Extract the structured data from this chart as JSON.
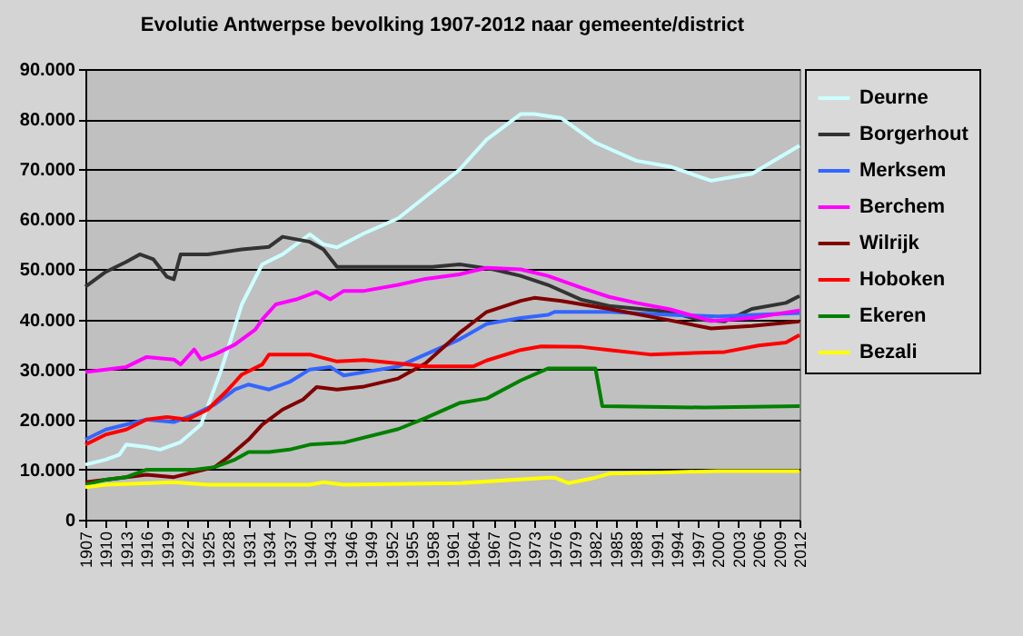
{
  "chart_data": {
    "type": "line",
    "title": "Evolutie Antwerpse bevolking 1907-2012 naar gemeente/district",
    "xlim": [
      1907,
      2012
    ],
    "xticks": [
      1907,
      1910,
      1913,
      1916,
      1919,
      1922,
      1925,
      1928,
      1931,
      1934,
      1937,
      1940,
      1943,
      1946,
      1949,
      1952,
      1955,
      1958,
      1961,
      1964,
      1967,
      1970,
      1973,
      1976,
      1979,
      1982,
      1985,
      1988,
      1991,
      1994,
      1997,
      2000,
      2003,
      2006,
      2009,
      2012
    ],
    "ylim": [
      0,
      90000
    ],
    "yticks": [
      0,
      {
        "value": 10000,
        "label": "10.000"
      },
      {
        "value": 20000,
        "label": "20.000"
      },
      {
        "value": 30000,
        "label": "30.000"
      },
      {
        "value": 40000,
        "label": "40.000"
      },
      {
        "value": 50000,
        "label": "50.000"
      },
      {
        "value": 60000,
        "label": "60.000"
      },
      {
        "value": 70000,
        "label": "70.000"
      },
      {
        "value": 80000,
        "label": "80.000"
      },
      {
        "value": 90000,
        "label": "90.000"
      }
    ],
    "grid": "y",
    "legend": "right",
    "marker": "none",
    "line_style": "solid",
    "series": [
      {
        "name": "Deurne",
        "color": "#ccffff",
        "x": [
          1907,
          1910,
          1912,
          1913,
          1916,
          1918,
          1921,
          1924,
          1927,
          1930,
          1933,
          1936,
          1940,
          1942,
          1944,
          1948,
          1953,
          1957,
          1962,
          1966,
          1971,
          1973,
          1977,
          1982,
          1988,
          1993,
          1999,
          2005,
          2009,
          2012
        ],
        "values": [
          11000,
          12000,
          13000,
          15000,
          14500,
          14000,
          15500,
          19000,
          30000,
          43000,
          51000,
          53000,
          57000,
          55000,
          54400,
          57200,
          60200,
          64500,
          69900,
          75900,
          81000,
          81000,
          80200,
          75300,
          71700,
          70500,
          67700,
          69100,
          72300,
          74700
        ]
      },
      {
        "name": "Borgerhout",
        "color": "#333333",
        "x": [
          1907,
          1910,
          1913,
          1915,
          1917,
          1919,
          1920,
          1921,
          1925,
          1930,
          1934,
          1936,
          1940,
          1942,
          1944,
          1950,
          1958,
          1962,
          1967,
          1971,
          1975,
          1980,
          1984,
          1993,
          1997,
          2001,
          2005,
          2010,
          2012
        ],
        "values": [
          46500,
          49500,
          51500,
          53000,
          52000,
          48500,
          48000,
          53000,
          53000,
          54000,
          54500,
          56500,
          55500,
          54000,
          50500,
          50500,
          50500,
          51000,
          50000,
          48700,
          46900,
          43900,
          42700,
          41500,
          40000,
          39600,
          42100,
          43300,
          44700
        ]
      },
      {
        "name": "Merksem",
        "color": "#3366ff",
        "x": [
          1907,
          1910,
          1913,
          1916,
          1920,
          1923,
          1926,
          1929,
          1931,
          1934,
          1937,
          1940,
          1943,
          1945,
          1953,
          1957,
          1962,
          1966,
          1971,
          1975,
          1976,
          1984,
          1993,
          2000,
          2012
        ],
        "values": [
          16000,
          18000,
          19000,
          20000,
          19500,
          21000,
          23000,
          26000,
          27000,
          26000,
          27500,
          30000,
          30500,
          28800,
          30600,
          33000,
          36000,
          39100,
          40300,
          40900,
          41500,
          41500,
          40900,
          40600,
          41300
        ]
      },
      {
        "name": "Berchem",
        "color": "#ff00ff",
        "x": [
          1907,
          1910,
          1913,
          1916,
          1920,
          1921,
          1923,
          1924,
          1926,
          1929,
          1932,
          1933,
          1935,
          1938,
          1941,
          1943,
          1945,
          1948,
          1953,
          1957,
          1962,
          1966,
          1971,
          1975,
          1980,
          1984,
          1988,
          1993,
          1999,
          2005,
          2012
        ],
        "values": [
          29500,
          30000,
          30500,
          32500,
          32000,
          31000,
          34000,
          32000,
          33000,
          35000,
          38000,
          40000,
          43000,
          44000,
          45500,
          44000,
          45700,
          45700,
          46900,
          48100,
          49000,
          50300,
          50000,
          48700,
          46300,
          44500,
          43300,
          42000,
          39700,
          40300,
          41800
        ]
      },
      {
        "name": "Wilrijk",
        "color": "#800000",
        "x": [
          1907,
          1910,
          1913,
          1916,
          1920,
          1923,
          1926,
          1928,
          1931,
          1933,
          1936,
          1939,
          1941,
          1944,
          1948,
          1953,
          1957,
          1962,
          1966,
          1971,
          1973,
          1977,
          1984,
          1993,
          1999,
          2005,
          2012
        ],
        "values": [
          7500,
          8000,
          8500,
          9000,
          8500,
          9500,
          10500,
          12500,
          16000,
          19000,
          22000,
          24000,
          26500,
          26000,
          26600,
          28200,
          31200,
          37300,
          41500,
          43700,
          44300,
          43700,
          42100,
          39800,
          38200,
          38700,
          39600
        ]
      },
      {
        "name": "Hoboken",
        "color": "#ff0000",
        "x": [
          1907,
          1910,
          1913,
          1916,
          1919,
          1922,
          1925,
          1928,
          1930,
          1933,
          1934,
          1937,
          1940,
          1944,
          1948,
          1953,
          1957,
          1964,
          1966,
          1971,
          1974,
          1980,
          1984,
          1990,
          2001,
          2006,
          2010,
          2012
        ],
        "values": [
          15000,
          17000,
          18000,
          20000,
          20500,
          20000,
          22000,
          26000,
          29000,
          31000,
          33000,
          33000,
          33000,
          31600,
          31900,
          31200,
          30600,
          30600,
          31800,
          33900,
          34600,
          34500,
          33900,
          33000,
          33500,
          34800,
          35400,
          36900
        ]
      },
      {
        "name": "Ekeren",
        "color": "#008000",
        "x": [
          1907,
          1910,
          1913,
          1916,
          1920,
          1923,
          1926,
          1929,
          1931,
          1934,
          1937,
          1940,
          1945,
          1953,
          1957,
          1962,
          1966,
          1971,
          1975,
          1982,
          1983,
          1998,
          2012
        ],
        "values": [
          7000,
          8000,
          8500,
          10000,
          10000,
          10000,
          10500,
          12000,
          13500,
          13500,
          14000,
          15000,
          15400,
          18100,
          20300,
          23300,
          24200,
          27800,
          30200,
          30200,
          22700,
          22400,
          22700
        ]
      },
      {
        "name": "Bezali",
        "color": "#ffff00",
        "x": [
          1907,
          1910,
          1920,
          1925,
          1940,
          1942,
          1945,
          1962,
          1975,
          1976,
          1978,
          1982,
          1984,
          1993,
          2000,
          2012
        ],
        "values": [
          6500,
          7000,
          7500,
          7000,
          7000,
          7500,
          7000,
          7300,
          8400,
          8400,
          7300,
          8400,
          9200,
          9500,
          9700,
          9700
        ]
      }
    ]
  }
}
